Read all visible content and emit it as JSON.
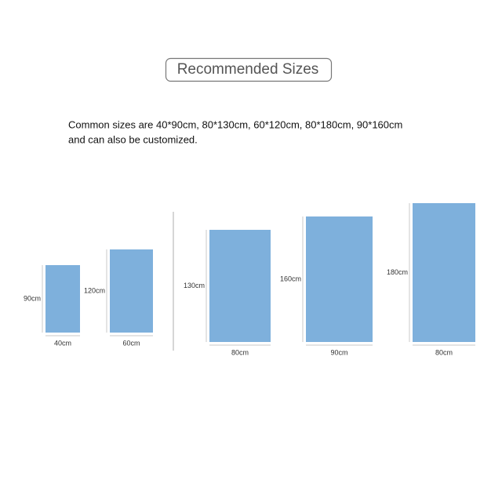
{
  "header": {
    "title": "Recommended Sizes"
  },
  "description": [
    "Common sizes are  40*90cm,  80*130cm,  60*120cm,  80*180cm,  90*160cm",
    "and can also be customized."
  ],
  "items": [
    {
      "height": "90cm",
      "width": "40cm"
    },
    {
      "height": "120cm",
      "width": "60cm"
    },
    {
      "height": "130cm",
      "width": "80cm"
    },
    {
      "height": "160cm",
      "width": "90cm"
    },
    {
      "height": "180cm",
      "width": "80cm"
    }
  ]
}
